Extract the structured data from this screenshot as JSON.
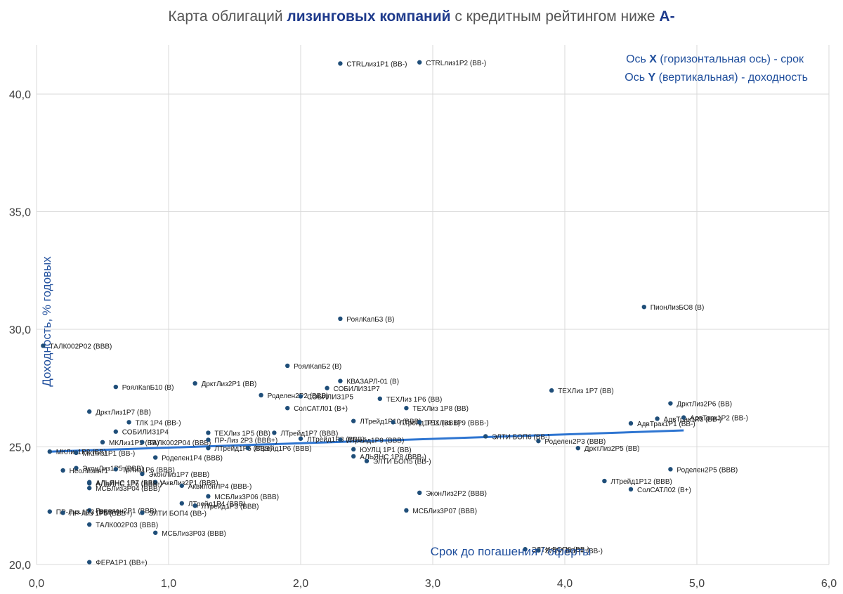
{
  "chart_data": {
    "type": "scatter",
    "title_parts": [
      "Карта облигаций ",
      "лизинговых компаний",
      " с кредитным рейтингом ниже ",
      "A-"
    ],
    "xlabel": "Срок до погашения / оферты",
    "ylabel": "Доходность, % годовых",
    "xlim": [
      0,
      6
    ],
    "ylim": [
      20,
      42
    ],
    "x_ticks": [
      "0,0",
      "1,0",
      "2,0",
      "3,0",
      "4,0",
      "5,0",
      "6,0"
    ],
    "y_ticks": [
      "20,0",
      "25,0",
      "30,0",
      "35,0",
      "40,0"
    ],
    "grid": true,
    "annotations": [
      [
        "Ось ",
        "X",
        " (горизонтальная ось) - срок"
      ],
      [
        "Ось ",
        "Y",
        " (вертикальная) - доходность"
      ]
    ],
    "trendline": {
      "x": [
        0.1,
        4.9
      ],
      "y": [
        24.8,
        25.7
      ]
    },
    "points": [
      {
        "label": "CTRLлиз1P1 (BB-)",
        "x": 2.3,
        "y": 41.3
      },
      {
        "label": "CTRLлиз1P2 (BB-)",
        "x": 2.9,
        "y": 41.35
      },
      {
        "label": "ПионЛизБО8 (B)",
        "x": 4.6,
        "y": 30.95
      },
      {
        "label": "РоялКапБ3 (B)",
        "x": 2.3,
        "y": 30.45
      },
      {
        "label": "ТАЛК002P02 (BBB)",
        "x": 0.05,
        "y": 29.3
      },
      {
        "label": "РоялКапБ2 (B)",
        "x": 1.9,
        "y": 28.45
      },
      {
        "label": "КВАЗАРЛ-01 (B)",
        "x": 2.3,
        "y": 27.8
      },
      {
        "label": "ДрктЛиз2Р1 (BB)",
        "x": 1.2,
        "y": 27.7
      },
      {
        "label": "РоялКапБ10 (B)",
        "x": 0.6,
        "y": 27.55
      },
      {
        "label": "СОБИЛИЗ1Р7",
        "x": 2.2,
        "y": 27.5
      },
      {
        "label": "Роделен2Р2 (BBB)",
        "x": 1.7,
        "y": 27.2
      },
      {
        "label": "СОБИЛИЗ1Р5",
        "x": 2.0,
        "y": 27.15
      },
      {
        "label": "ТЕХЛиз 1Р6 (BB)",
        "x": 2.6,
        "y": 27.05
      },
      {
        "label": "ТЕХЛиз 1Р7 (BB)",
        "x": 3.9,
        "y": 27.4
      },
      {
        "label": "СолСАТЛ01 (B+)",
        "x": 1.9,
        "y": 26.65
      },
      {
        "label": "ТЕХЛиз 1Р8 (BB)",
        "x": 2.8,
        "y": 26.65
      },
      {
        "label": "ДрктЛиз2Р6 (BB)",
        "x": 4.8,
        "y": 26.85
      },
      {
        "label": "ДрктЛиз1Р7 (BB)",
        "x": 0.4,
        "y": 26.5
      },
      {
        "label": "АдвТрак1Р3 (BB-)",
        "x": 4.7,
        "y": 26.2
      },
      {
        "label": "АдвТрак1Р2 (BB-)",
        "x": 4.9,
        "y": 26.25
      },
      {
        "label": "АдвТрак1Р1 (BB-)",
        "x": 4.5,
        "y": 26.0
      },
      {
        "label": "ЛТрейд1Р10 (BBB)",
        "x": 2.4,
        "y": 26.1
      },
      {
        "label": "ЛТрейд1Р11 (BBB)",
        "x": 2.7,
        "y": 26.05
      },
      {
        "label": "ТЕХЛиз 1Р9 (BBB-)",
        "x": 2.9,
        "y": 26.05
      },
      {
        "label": "ТЛК 1Р4 (BB-)",
        "x": 0.7,
        "y": 26.05
      },
      {
        "label": "СОБИЛИЗ1Р4",
        "x": 0.6,
        "y": 25.65
      },
      {
        "label": "ТЕХЛиз 1Р5 (BB)",
        "x": 1.3,
        "y": 25.6
      },
      {
        "label": "ЛТрейд1Р7 (BBB)",
        "x": 1.8,
        "y": 25.6
      },
      {
        "label": "ЛТрейд1Р8 (BBB)",
        "x": 2.0,
        "y": 25.35
      },
      {
        "label": "ЛТрейд1Р9 (BBB)",
        "x": 2.3,
        "y": 25.3
      },
      {
        "label": "ЭЛТИ БОП6 (BB-)",
        "x": 3.4,
        "y": 25.45
      },
      {
        "label": "МКЛиз1Р3 (BB)",
        "x": 0.5,
        "y": 25.2
      },
      {
        "label": "ТАЛК002P04 (BBB)",
        "x": 0.8,
        "y": 25.2
      },
      {
        "label": "ПР-Лиз 2Р3 (BBB+)",
        "x": 1.3,
        "y": 25.3
      },
      {
        "label": "ЛТрейд1Р5 (BBB)",
        "x": 1.3,
        "y": 24.95
      },
      {
        "label": "ЛТрейд1Р6 (BBB)",
        "x": 1.6,
        "y": 24.95
      },
      {
        "label": "Роделен2Р3 (BBB)",
        "x": 3.8,
        "y": 25.25
      },
      {
        "label": "ДрктЛиз2Р5 (BB)",
        "x": 4.1,
        "y": 24.95
      },
      {
        "label": "ЮУЛЦ 1Р1 (BB)",
        "x": 2.4,
        "y": 24.9
      },
      {
        "label": "МКЛиз1Р2 (BB)",
        "x": 0.1,
        "y": 24.8
      },
      {
        "label": "МКЛиз1Р1 (BB-)",
        "x": 0.3,
        "y": 24.75
      },
      {
        "label": "АЛЬЯНС 1Р8 (BBB-)",
        "x": 2.4,
        "y": 24.6
      },
      {
        "label": "Роделен1Р4 (BBB)",
        "x": 0.9,
        "y": 24.55
      },
      {
        "label": "ЭЛТИ БОП5 (BB-)",
        "x": 2.5,
        "y": 24.4
      },
      {
        "label": "ЭконЛиз1Р5 (BBB)",
        "x": 0.3,
        "y": 24.1
      },
      {
        "label": "Роделен2Р5 (BBB)",
        "x": 4.8,
        "y": 24.05
      },
      {
        "label": "НеоЛизинг1",
        "x": 0.2,
        "y": 24.0
      },
      {
        "label": "ТрЛиз1Р6 (BBB)",
        "x": 0.6,
        "y": 24.05
      },
      {
        "label": "ЭконЛиз1Р7 (BBB)",
        "x": 0.8,
        "y": 23.85
      },
      {
        "label": "ЛТрейд1Р12 (BBB)",
        "x": 4.3,
        "y": 23.55
      },
      {
        "label": "АЛЬЯНС 1Р7 (BBB-)",
        "x": 0.4,
        "y": 23.5
      },
      {
        "label": "АквЛиз2Р1 (BBB)",
        "x": 0.9,
        "y": 23.5
      },
      {
        "label": "АЛЬЯНС 1Р6 (BBB-)",
        "x": 0.4,
        "y": 23.45
      },
      {
        "label": "АквилонЛР4 (BBB-)",
        "x": 1.1,
        "y": 23.35
      },
      {
        "label": "МСБЛиз3Р04 (BBB)",
        "x": 0.4,
        "y": 23.25
      },
      {
        "label": "СолСАТЛ02 (B+)",
        "x": 4.5,
        "y": 23.2
      },
      {
        "label": "ЭконЛиз2Р2 (BBB)",
        "x": 2.9,
        "y": 23.05
      },
      {
        "label": "МСБЛиз3Р06 (BBB)",
        "x": 1.3,
        "y": 22.9
      },
      {
        "label": "ЛТрейд1Р4 (BBB)",
        "x": 1.1,
        "y": 22.6
      },
      {
        "label": "ЛТрейд1Р3 (BBB)",
        "x": 1.2,
        "y": 22.5
      },
      {
        "label": "МСБЛиз3Р07 (BBB)",
        "x": 2.8,
        "y": 22.3
      },
      {
        "label": "Роделен2Р1 (BBB)",
        "x": 0.4,
        "y": 22.3
      },
      {
        "label": "ПР-Лиз 1Р3 (BBB+)",
        "x": 0.1,
        "y": 22.25
      },
      {
        "label": "ПР-Лиз 1Р5 (BBB+)",
        "x": 0.2,
        "y": 22.2
      },
      {
        "label": "ЭЛТИ БОП4 (BB-)",
        "x": 0.8,
        "y": 22.2
      },
      {
        "label": "ТАЛК002P03 (BBB)",
        "x": 0.4,
        "y": 21.7
      },
      {
        "label": "МСБЛиз3Р03 (BBB)",
        "x": 0.9,
        "y": 21.35
      },
      {
        "label": "ЭЛТИ БОП8 (BB-)",
        "x": 3.7,
        "y": 20.65
      },
      {
        "label": "ЭЛТИ БОП7 (BB-)",
        "x": 3.8,
        "y": 20.6
      },
      {
        "label": "ФЕРА1Р1 (BB+)",
        "x": 0.4,
        "y": 20.1
      }
    ]
  }
}
